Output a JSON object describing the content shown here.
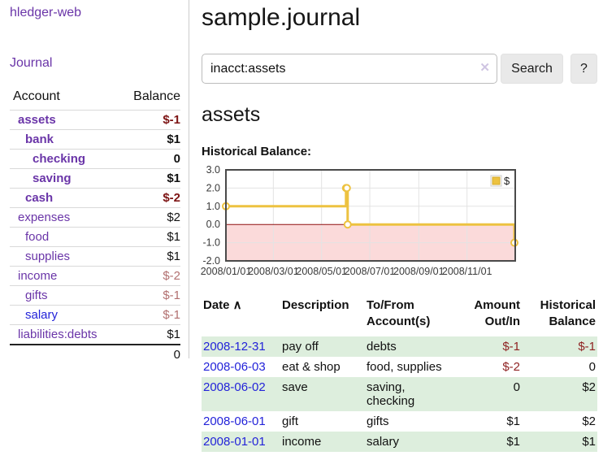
{
  "app": {
    "title": "hledger-web"
  },
  "sidebar": {
    "nav": [
      {
        "label": "Journal"
      }
    ],
    "accounts_table": {
      "headers": [
        "Account",
        "Balance"
      ],
      "rows": [
        {
          "account": "assets",
          "depth": 0,
          "bold": true,
          "balance": "$-1",
          "balance_style": "neg-strong",
          "link_style": "purple"
        },
        {
          "account": "bank",
          "depth": 1,
          "bold": true,
          "balance": "$1",
          "balance_style": "pos",
          "link_style": "purple"
        },
        {
          "account": "checking",
          "depth": 2,
          "bold": true,
          "balance": "0",
          "balance_style": "pos",
          "link_style": "purple"
        },
        {
          "account": "saving",
          "depth": 2,
          "bold": true,
          "balance": "$1",
          "balance_style": "pos",
          "link_style": "purple"
        },
        {
          "account": "cash",
          "depth": 1,
          "bold": true,
          "balance": "$-2",
          "balance_style": "neg-strong",
          "link_style": "purple"
        },
        {
          "account": "expenses",
          "depth": 0,
          "bold": false,
          "balance": "$2",
          "balance_style": "pos",
          "link_style": "purple"
        },
        {
          "account": "food",
          "depth": 1,
          "bold": false,
          "balance": "$1",
          "balance_style": "pos",
          "link_style": "purple"
        },
        {
          "account": "supplies",
          "depth": 1,
          "bold": false,
          "balance": "$1",
          "balance_style": "pos",
          "link_style": "purple"
        },
        {
          "account": "income",
          "depth": 0,
          "bold": false,
          "balance": "$-2",
          "balance_style": "neg-soft",
          "link_style": "purple"
        },
        {
          "account": "gifts",
          "depth": 1,
          "bold": false,
          "balance": "$-1",
          "balance_style": "neg-soft",
          "link_style": "purple"
        },
        {
          "account": "salary",
          "depth": 1,
          "bold": false,
          "balance": "$-1",
          "balance_style": "neg-soft",
          "link_style": "blue"
        },
        {
          "account": "liabilities:debts",
          "depth": 0,
          "bold": false,
          "balance": "$1",
          "balance_style": "pos",
          "link_style": "purple"
        }
      ],
      "total": "0"
    }
  },
  "header": {
    "title": "sample.journal"
  },
  "search": {
    "value": "inacct:assets",
    "clear_icon": "✕",
    "button_label": "Search",
    "help_label": "?"
  },
  "account_page": {
    "heading": "assets",
    "chart_label": "Historical Balance:"
  },
  "chart_data": {
    "type": "line",
    "step": true,
    "title": "Historical Balance",
    "series": [
      {
        "name": "$",
        "color": "#edc240",
        "points": [
          [
            "2008-01-01",
            1.0
          ],
          [
            "2008-06-01",
            2.0
          ],
          [
            "2008-06-02",
            2.0
          ],
          [
            "2008-06-03",
            0.0
          ],
          [
            "2008-12-31",
            -1.0
          ]
        ]
      }
    ],
    "ylim": [
      -2.0,
      3.0
    ],
    "y_ticks": [
      3.0,
      2.0,
      1.0,
      0.0,
      -1.0,
      -2.0
    ],
    "x_range": [
      "2008-01-01",
      "2009-01-01"
    ],
    "x_ticks": [
      {
        "label": "2008/01/01",
        "date": "2008-01-01"
      },
      {
        "label": "2008/03/01",
        "date": "2008-03-01"
      },
      {
        "label": "2008/05/01",
        "date": "2008-05-01"
      },
      {
        "label": "2008/07/01",
        "date": "2008-07-01"
      },
      {
        "label": "2008/09/01",
        "date": "2008-09-01"
      },
      {
        "label": "2008/11/01",
        "date": "2008-11-01"
      }
    ],
    "legend_position": "top-right",
    "grid": true,
    "marker": "open-circle",
    "colors": {
      "line": "#edc240",
      "negative_region": "#fbdada",
      "zero_line": "#8f0f0f",
      "gridline": "#e3e3e3",
      "border": "#4a4a4a",
      "tick_text": "#3a3a3a"
    }
  },
  "register": {
    "sort_icon": "∧",
    "headers": [
      {
        "line1": "Date",
        "line2": "",
        "align": "left",
        "sorted": true
      },
      {
        "line1": "Description",
        "line2": "",
        "align": "left",
        "sorted": false
      },
      {
        "line1": "To/From",
        "line2": "Account(s)",
        "align": "left",
        "sorted": false
      },
      {
        "line1": "Amount",
        "line2": "Out/In",
        "align": "right",
        "sorted": false
      },
      {
        "line1": "Historical",
        "line2": "Balance",
        "align": "right",
        "sorted": false
      }
    ],
    "rows": [
      {
        "date": "2008-12-31",
        "description": "pay off",
        "accounts": "debts",
        "amount": "$-1",
        "amount_neg": true,
        "balance": "$-1",
        "balance_neg": true,
        "shaded": true
      },
      {
        "date": "2008-06-03",
        "description": "eat & shop",
        "accounts": "food, supplies",
        "amount": "$-2",
        "amount_neg": true,
        "balance": "0",
        "balance_neg": false,
        "shaded": false
      },
      {
        "date": "2008-06-02",
        "description": "save",
        "accounts": "saving,\nchecking",
        "amount": "0",
        "amount_neg": false,
        "balance": "$2",
        "balance_neg": false,
        "shaded": true
      },
      {
        "date": "2008-06-01",
        "description": "gift",
        "accounts": "gifts",
        "amount": "$1",
        "amount_neg": false,
        "balance": "$2",
        "balance_neg": false,
        "shaded": false
      },
      {
        "date": "2008-01-01",
        "description": "income",
        "accounts": "salary",
        "amount": "$1",
        "amount_neg": false,
        "balance": "$1",
        "balance_neg": false,
        "shaded": true
      }
    ]
  }
}
